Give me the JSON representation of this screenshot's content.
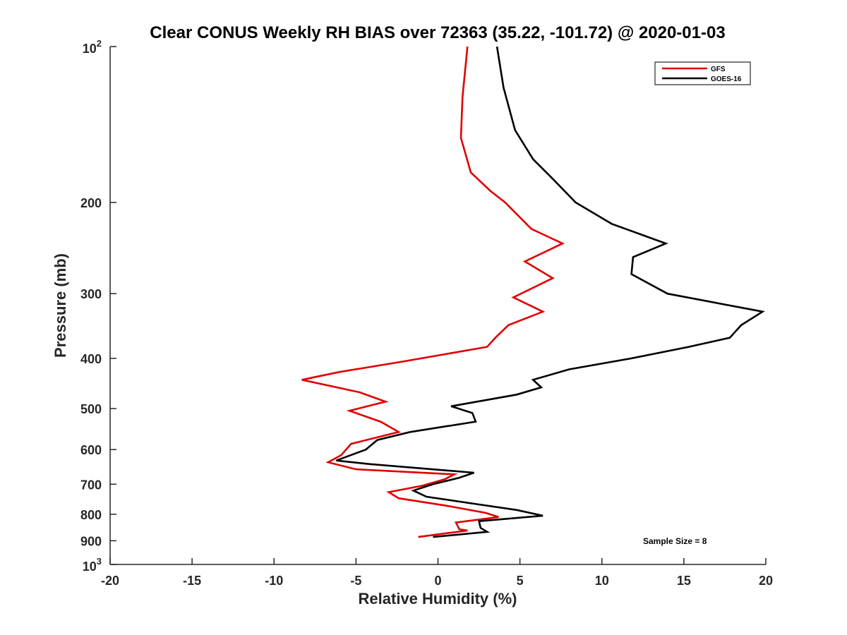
{
  "chart_data": {
    "type": "line",
    "title": "Clear CONUS Weekly RH BIAS over 72363 (35.22, -101.72) @ 2020-01-03",
    "xlabel": "Relative Humidity (%)",
    "ylabel": "Pressure (mb)",
    "xlim": [
      -20,
      20
    ],
    "ylim": [
      100,
      1000
    ],
    "yscale": "log",
    "y_reversed": true,
    "x_ticks": [
      {
        "value": -20,
        "label": "-20"
      },
      {
        "value": -15,
        "label": "-15"
      },
      {
        "value": -10,
        "label": "-10"
      },
      {
        "value": -5,
        "label": "-5"
      },
      {
        "value": 0,
        "label": "0"
      },
      {
        "value": 5,
        "label": "5"
      },
      {
        "value": 10,
        "label": "10"
      },
      {
        "value": 15,
        "label": "15"
      },
      {
        "value": 20,
        "label": "20"
      }
    ],
    "y_ticks": [
      {
        "value": 100,
        "base": "10",
        "exp": "2"
      },
      {
        "value": 200,
        "label": "200"
      },
      {
        "value": 300,
        "label": "300"
      },
      {
        "value": 400,
        "label": "400"
      },
      {
        "value": 500,
        "label": "500"
      },
      {
        "value": 600,
        "label": "600"
      },
      {
        "value": 700,
        "label": "700"
      },
      {
        "value": 800,
        "label": "800"
      },
      {
        "value": 900,
        "label": "900"
      },
      {
        "value": 1000,
        "base": "10",
        "exp": "3"
      }
    ],
    "series": [
      {
        "name": "GFS",
        "color": "#e00000",
        "points": [
          [
            1.8,
            100
          ],
          [
            1.5,
            125
          ],
          [
            1.4,
            150
          ],
          [
            2.0,
            175
          ],
          [
            3.2,
            190
          ],
          [
            4.1,
            200
          ],
          [
            5.7,
            225
          ],
          [
            7.6,
            240
          ],
          [
            5.3,
            260
          ],
          [
            7.0,
            280
          ],
          [
            4.6,
            305
          ],
          [
            6.4,
            325
          ],
          [
            4.3,
            345
          ],
          [
            3.5,
            365
          ],
          [
            3.0,
            380
          ],
          [
            -2.0,
            405
          ],
          [
            -6.0,
            425
          ],
          [
            -8.3,
            440
          ],
          [
            -4.8,
            465
          ],
          [
            -3.2,
            485
          ],
          [
            -5.4,
            505
          ],
          [
            -3.5,
            530
          ],
          [
            -2.4,
            555
          ],
          [
            -5.3,
            585
          ],
          [
            -5.9,
            615
          ],
          [
            -6.7,
            635
          ],
          [
            -5.0,
            655
          ],
          [
            1.0,
            670
          ],
          [
            0.4,
            685
          ],
          [
            -1.0,
            705
          ],
          [
            -3.0,
            725
          ],
          [
            -2.4,
            745
          ],
          [
            0.5,
            770
          ],
          [
            2.9,
            795
          ],
          [
            3.7,
            810
          ],
          [
            1.1,
            830
          ],
          [
            1.3,
            855
          ],
          [
            1.8,
            860
          ],
          [
            -1.2,
            885
          ]
        ]
      },
      {
        "name": "GOES-16",
        "color": "#000000",
        "points": [
          [
            3.6,
            100
          ],
          [
            4.0,
            120
          ],
          [
            4.7,
            145
          ],
          [
            5.8,
            165
          ],
          [
            7.0,
            180
          ],
          [
            8.4,
            200
          ],
          [
            10.6,
            220
          ],
          [
            13.9,
            240
          ],
          [
            11.9,
            255
          ],
          [
            11.8,
            275
          ],
          [
            14.0,
            300
          ],
          [
            19.8,
            325
          ],
          [
            18.5,
            345
          ],
          [
            17.8,
            365
          ],
          [
            15.3,
            380
          ],
          [
            11.8,
            400
          ],
          [
            8.0,
            420
          ],
          [
            5.8,
            440
          ],
          [
            6.3,
            455
          ],
          [
            4.8,
            470
          ],
          [
            0.8,
            495
          ],
          [
            2.1,
            510
          ],
          [
            2.3,
            530
          ],
          [
            -1.7,
            555
          ],
          [
            -3.7,
            575
          ],
          [
            -4.4,
            600
          ],
          [
            -6.2,
            630
          ],
          [
            -4.2,
            640
          ],
          [
            2.2,
            665
          ],
          [
            1.3,
            680
          ],
          [
            -0.3,
            700
          ],
          [
            -1.5,
            720
          ],
          [
            -0.7,
            740
          ],
          [
            2.4,
            765
          ],
          [
            4.8,
            785
          ],
          [
            6.4,
            805
          ],
          [
            2.5,
            825
          ],
          [
            2.6,
            850
          ],
          [
            3.0,
            865
          ],
          [
            -0.3,
            885
          ]
        ]
      }
    ],
    "legend": {
      "placement": "top-right",
      "entries": [
        "GFS",
        "GOES-16"
      ]
    },
    "annotation": "Sample Size = 8"
  }
}
